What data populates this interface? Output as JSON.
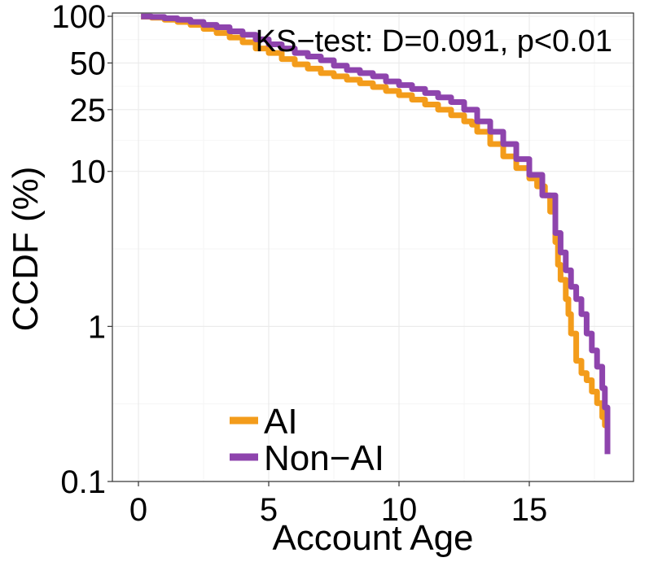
{
  "chart_data": {
    "type": "line",
    "title": "",
    "xlabel": "Account Age",
    "ylabel": "CCDF (%)",
    "y_scale": "log",
    "xlim": [
      -1,
      19
    ],
    "ylim": [
      0.1,
      105
    ],
    "x_ticks": [
      0,
      5,
      10,
      15
    ],
    "x_tick_labels": [
      "0",
      "5",
      "10",
      "15"
    ],
    "y_ticks": [
      0.1,
      1,
      10,
      25,
      50,
      100
    ],
    "y_tick_labels": [
      "0.1",
      "1",
      "10",
      "25",
      "50",
      "100"
    ],
    "annotation": "KS−test: D=0.091, p<0.01",
    "legend_position": "bottom-left",
    "series": [
      {
        "name": "AI",
        "color": "#F39C1B",
        "x": [
          0.1,
          0.5,
          1,
          1.5,
          2,
          2.5,
          3,
          3.5,
          4,
          4.5,
          5,
          5.5,
          6,
          6.5,
          7,
          7.5,
          8,
          8.5,
          9,
          9.5,
          10,
          10.5,
          11,
          11.5,
          12,
          12.5,
          12.8,
          13,
          13.5,
          14,
          14.5,
          15,
          15.3,
          15.6,
          15.8,
          16,
          16.1,
          16.2,
          16.4,
          16.5,
          16.6,
          16.8,
          17,
          17.2,
          17.4,
          17.6,
          17.8,
          17.9,
          18
        ],
        "values": [
          99.5,
          98,
          95,
          92,
          88,
          83,
          78,
          73,
          68,
          62,
          58,
          53,
          49,
          46,
          43,
          41,
          39,
          37,
          35,
          33,
          31,
          29,
          27,
          25,
          23,
          21,
          20,
          18,
          15,
          12.5,
          10.5,
          9,
          8,
          7,
          5.5,
          3.5,
          2.5,
          2,
          1.5,
          1.2,
          0.9,
          0.6,
          0.5,
          0.45,
          0.38,
          0.32,
          0.26,
          0.23,
          0.16
        ]
      },
      {
        "name": "Non−AI",
        "color": "#8E44AD",
        "x": [
          0.1,
          0.5,
          1,
          1.5,
          2,
          2.5,
          3,
          3.5,
          4,
          4.5,
          5,
          5.5,
          6,
          6.5,
          7,
          7.5,
          8,
          8.5,
          9,
          9.5,
          10,
          10.5,
          11,
          11.5,
          12,
          12.5,
          13,
          13.5,
          14,
          14.5,
          15,
          15.5,
          16,
          16.2,
          16.4,
          16.6,
          16.8,
          17,
          17.2,
          17.4,
          17.6,
          17.8,
          17.9,
          18
        ],
        "values": [
          99.8,
          99,
          97,
          95,
          92,
          88,
          85,
          80,
          76,
          71,
          66,
          62,
          58,
          55,
          52,
          48,
          45,
          43,
          41,
          38,
          36,
          34,
          32,
          30,
          28,
          25,
          21,
          18,
          15,
          12,
          9.5,
          7,
          4,
          3,
          2.3,
          1.8,
          1.5,
          1.2,
          0.9,
          0.7,
          0.55,
          0.4,
          0.3,
          0.15
        ]
      }
    ]
  }
}
